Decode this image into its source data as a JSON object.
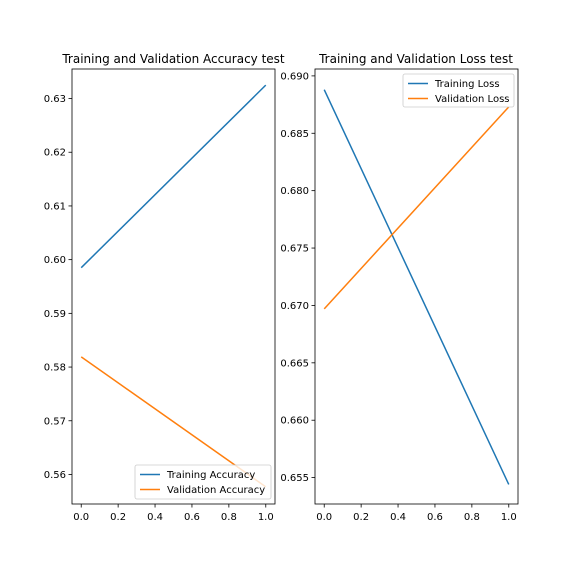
{
  "chart_data": [
    {
      "type": "line",
      "title": "Training and Validation Accuracy test",
      "xlabel": "",
      "ylabel": "",
      "xlim": [
        -0.05,
        1.05
      ],
      "ylim": [
        0.5545,
        0.6355
      ],
      "xticks": [
        0.0,
        0.2,
        0.4,
        0.6,
        0.8,
        1.0
      ],
      "xtick_labels": [
        "0.0",
        "0.2",
        "0.4",
        "0.6",
        "0.8",
        "1.0"
      ],
      "yticks": [
        0.56,
        0.57,
        0.58,
        0.59,
        0.6,
        0.61,
        0.62,
        0.63
      ],
      "ytick_labels": [
        "0.56",
        "0.57",
        "0.58",
        "0.59",
        "0.60",
        "0.61",
        "0.62",
        "0.63"
      ],
      "legend_position": "bottom-right",
      "grid": false,
      "series": [
        {
          "name": "Training Accuracy",
          "color": "#1f77b4",
          "x": [
            0,
            1
          ],
          "y": [
            0.5985,
            0.6325
          ]
        },
        {
          "name": "Validation Accuracy",
          "color": "#ff7f0e",
          "x": [
            0,
            1
          ],
          "y": [
            0.5819,
            0.5577
          ]
        }
      ]
    },
    {
      "type": "line",
      "title": "Training and Validation Loss test",
      "xlabel": "",
      "ylabel": "",
      "xlim": [
        -0.05,
        1.05
      ],
      "ylim": [
        0.6527,
        0.6906
      ],
      "xticks": [
        0.0,
        0.2,
        0.4,
        0.6,
        0.8,
        1.0
      ],
      "xtick_labels": [
        "0.0",
        "0.2",
        "0.4",
        "0.6",
        "0.8",
        "1.0"
      ],
      "yticks": [
        0.655,
        0.66,
        0.665,
        0.67,
        0.675,
        0.68,
        0.685,
        0.69
      ],
      "ytick_labels": [
        "0.655",
        "0.660",
        "0.665",
        "0.670",
        "0.675",
        "0.680",
        "0.685",
        "0.690"
      ],
      "legend_position": "top-right",
      "grid": false,
      "series": [
        {
          "name": "Training Loss",
          "color": "#1f77b4",
          "x": [
            0,
            1
          ],
          "y": [
            0.6888,
            0.6544
          ]
        },
        {
          "name": "Validation Loss",
          "color": "#ff7f0e",
          "x": [
            0,
            1
          ],
          "y": [
            0.6697,
            0.6873
          ]
        }
      ]
    }
  ]
}
